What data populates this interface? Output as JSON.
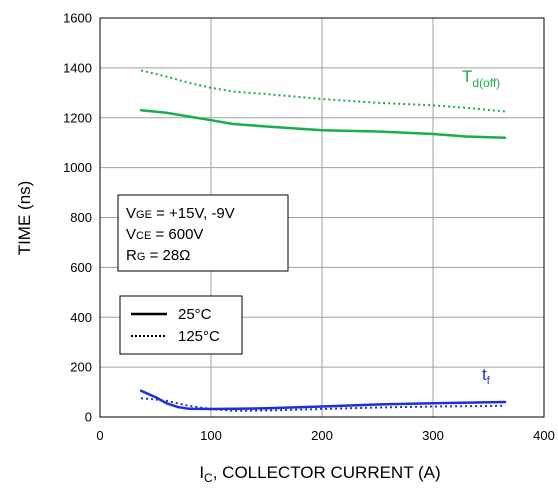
{
  "chart_data": {
    "type": "line",
    "xlabel": "C, COLLECTOR CURRENT (A)",
    "xlabel_main": "I",
    "xlabel_sub": "C",
    "xlabel_rest": ", COLLECTOR CURRENT (A)",
    "ylabel": "TIME (ns)",
    "xlim": [
      0,
      400
    ],
    "ylim": [
      0,
      1600
    ],
    "x_ticks": [
      "0",
      "100",
      "200",
      "300",
      "400"
    ],
    "y_ticks": [
      "0",
      "200",
      "400",
      "600",
      "800",
      "1000",
      "1200",
      "1400",
      "1600"
    ],
    "grid": true,
    "curve_labels": {
      "td_off_main": "T",
      "td_off_sub": "d(off)",
      "tf_main": "t",
      "tf_sub": "f"
    },
    "conditions": {
      "line1_sub": "GE",
      "line1_main": "V",
      "line1_rest": " = +15V, -9V",
      "line2_main": "V",
      "line2_sub": "CE",
      "line2_rest": " = 600V",
      "line3_main": "R",
      "line3_sub": "G",
      "line3_rest": " = 28Ω"
    },
    "legend": [
      {
        "label": "25°C",
        "style": "solid"
      },
      {
        "label": "125°C",
        "style": "dotted"
      }
    ],
    "colors": {
      "td_off": "#1aad4b",
      "tf": "#1f2fd6",
      "grid": "#a0a0a0"
    },
    "series": [
      {
        "name": "Td(off) 25°C",
        "group": "td_off",
        "style": "solid",
        "x": [
          37,
          60,
          80,
          100,
          120,
          150,
          200,
          250,
          300,
          330,
          365
        ],
        "y": [
          1230,
          1220,
          1205,
          1190,
          1175,
          1165,
          1150,
          1145,
          1135,
          1125,
          1120
        ]
      },
      {
        "name": "Td(off) 125°C",
        "group": "td_off",
        "style": "dotted",
        "x": [
          37,
          60,
          80,
          100,
          120,
          150,
          200,
          250,
          300,
          330,
          365
        ],
        "y": [
          1390,
          1365,
          1340,
          1320,
          1305,
          1295,
          1275,
          1260,
          1250,
          1240,
          1225
        ]
      },
      {
        "name": "tf 25°C",
        "group": "tf",
        "style": "solid",
        "x": [
          37,
          50,
          60,
          70,
          80,
          100,
          120,
          150,
          200,
          250,
          300,
          365
        ],
        "y": [
          105,
          80,
          55,
          40,
          33,
          32,
          33,
          35,
          42,
          50,
          55,
          60
        ]
      },
      {
        "name": "tf 125°C",
        "group": "tf",
        "style": "dotted",
        "x": [
          37,
          50,
          60,
          80,
          100,
          120,
          150,
          200,
          250,
          300,
          365
        ],
        "y": [
          75,
          70,
          65,
          45,
          32,
          25,
          26,
          32,
          38,
          42,
          45
        ]
      }
    ]
  }
}
